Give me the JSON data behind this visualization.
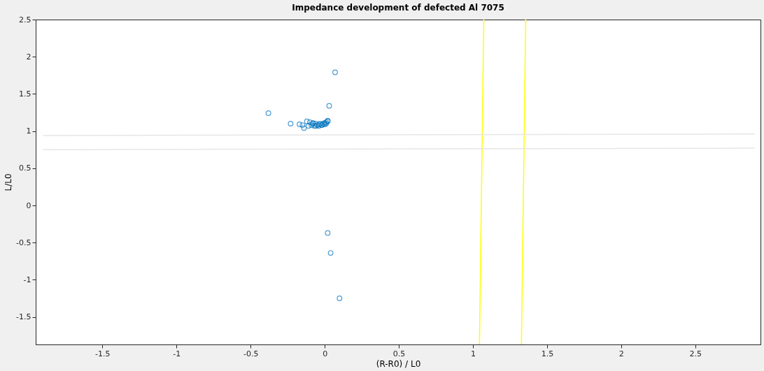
{
  "chart_data": {
    "type": "scatter",
    "title": "Impedance development of defected Al 7075",
    "xlabel": "(R-R0) / L0",
    "ylabel": "L/L0",
    "xlim": [
      -1.95,
      2.94
    ],
    "ylim": [
      -1.87,
      2.5
    ],
    "xticks": [
      -1.5,
      -1,
      -0.5,
      0,
      0.5,
      1,
      1.5,
      2,
      2.5
    ],
    "yticks": [
      -1.5,
      -1,
      -0.5,
      0,
      0.5,
      1,
      1.5,
      2,
      2.5
    ],
    "series": [
      {
        "color": "#0072bd",
        "marker": "circle",
        "x": [
          0.07,
          0.03,
          -0.38,
          -0.23,
          -0.17,
          -0.14,
          -0.12,
          -0.15,
          -0.1,
          -0.09,
          -0.08,
          -0.07,
          -0.06,
          -0.05,
          -0.04,
          -0.03,
          -0.02,
          -0.01,
          0,
          0.01,
          0.02,
          0.02,
          -0.06,
          -0.04,
          -0.02,
          0.0,
          0.01,
          -0.08,
          -0.11,
          0.02,
          0.04,
          0.1
        ],
        "values": [
          1.79,
          1.34,
          1.24,
          1.1,
          1.09,
          1.04,
          1.13,
          1.08,
          1.12,
          1.08,
          1.11,
          1.07,
          1.1,
          1.08,
          1.09,
          1.1,
          1.08,
          1.1,
          1.11,
          1.12,
          1.14,
          1.13,
          1.07,
          1.07,
          1.08,
          1.09,
          1.1,
          1.1,
          1.07,
          -0.37,
          -0.64,
          -1.25
        ]
      },
      {
        "type": "line",
        "color": "#ffff00",
        "x": [
          1.044,
          1.073
        ],
        "values": [
          -1.87,
          2.5
        ]
      },
      {
        "type": "line",
        "color": "#ffff00",
        "x": [
          1.327,
          1.356
        ],
        "values": [
          -1.87,
          2.5
        ]
      },
      {
        "type": "line",
        "color": "#e6e6e6",
        "x": [
          -1.9,
          2.9
        ],
        "values": [
          0.94,
          0.96
        ]
      },
      {
        "type": "line",
        "color": "#e6e6e6",
        "x": [
          -1.9,
          2.9
        ],
        "values": [
          0.75,
          0.77
        ]
      }
    ]
  }
}
